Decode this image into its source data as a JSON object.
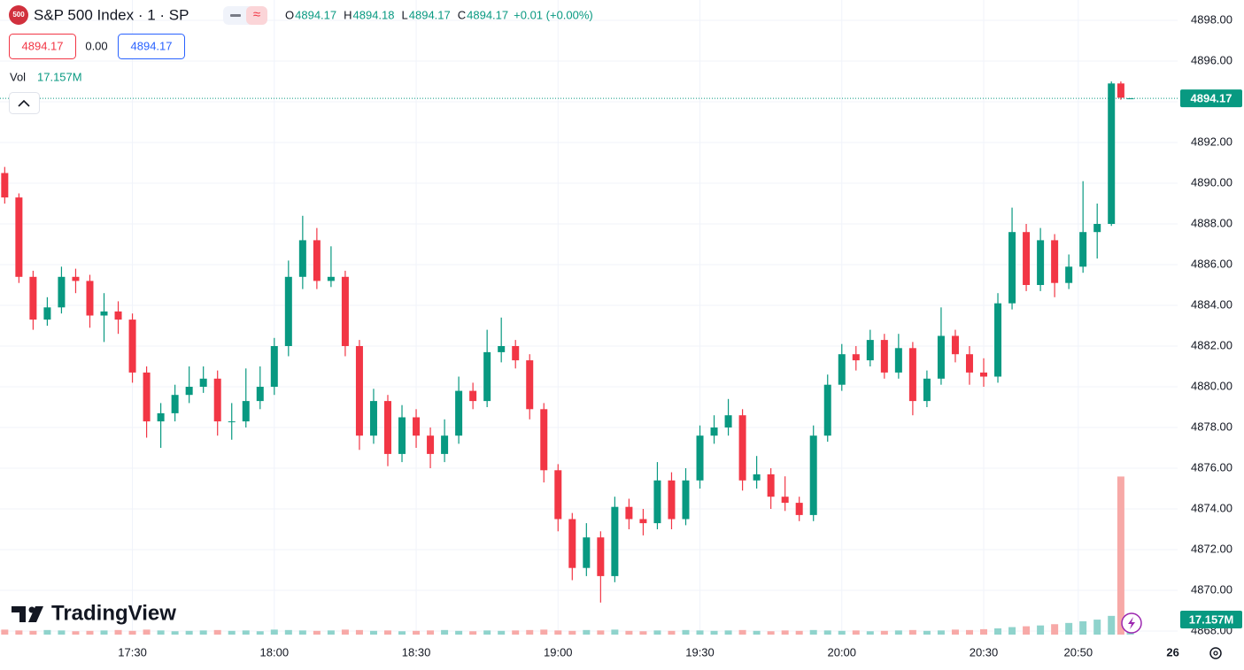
{
  "header": {
    "badge": "500",
    "title": "S&P 500 Index · 1 · SP",
    "o_label": "O",
    "h_label": "H",
    "l_label": "L",
    "c_label": "C",
    "change": "+0.01 (+0.00%)",
    "sell": "4894.17",
    "spread": "0.00",
    "buy": "4894.17",
    "vol_label": "Vol",
    "logo": "TradingView"
  },
  "chart_data": {
    "type": "candlestick",
    "x": [
      1023,
      1026,
      1029,
      1032,
      1035,
      1038,
      1041,
      1044,
      1047,
      1050,
      1053,
      1056,
      1059,
      1062,
      1065,
      1068,
      1071,
      1074,
      1077,
      1080,
      1083,
      1086,
      1089,
      1092,
      1095,
      1098,
      1101,
      1104,
      1107,
      1110,
      1113,
      1116,
      1119,
      1122,
      1125,
      1128,
      1131,
      1134,
      1137,
      1140,
      1143,
      1146,
      1149,
      1152,
      1155,
      1158,
      1161,
      1164,
      1167,
      1170,
      1173,
      1176,
      1179,
      1182,
      1185,
      1188,
      1191,
      1194,
      1197,
      1200,
      1203,
      1206,
      1209,
      1212,
      1215,
      1218,
      1221,
      1224,
      1227,
      1230,
      1233,
      1236,
      1239,
      1242,
      1245,
      1248,
      1251,
      1254,
      1257,
      1259,
      1261
    ],
    "candles": [
      [
        4890.5,
        4890.8,
        4889.0,
        4889.3
      ],
      [
        4889.3,
        4889.5,
        4885.1,
        4885.4
      ],
      [
        4885.4,
        4885.7,
        4882.8,
        4883.3
      ],
      [
        4883.3,
        4884.4,
        4883.0,
        4883.9
      ],
      [
        4883.9,
        4885.9,
        4883.6,
        4885.4
      ],
      [
        4885.4,
        4885.8,
        4884.6,
        4885.2
      ],
      [
        4885.2,
        4885.5,
        4882.9,
        4883.5
      ],
      [
        4883.5,
        4884.6,
        4882.2,
        4883.7
      ],
      [
        4883.7,
        4884.2,
        4882.6,
        4883.3
      ],
      [
        4883.3,
        4883.6,
        4880.2,
        4880.7
      ],
      [
        4880.7,
        4881.0,
        4877.5,
        4878.3
      ],
      [
        4878.3,
        4879.2,
        4877.0,
        4878.7
      ],
      [
        4878.7,
        4880.1,
        4878.3,
        4879.6
      ],
      [
        4879.6,
        4881.0,
        4879.2,
        4880.0
      ],
      [
        4880.0,
        4881.0,
        4879.7,
        4880.4
      ],
      [
        4880.4,
        4880.8,
        4877.6,
        4878.3
      ],
      [
        4878.3,
        4879.2,
        4877.4,
        4878.3
      ],
      [
        4878.3,
        4880.9,
        4878.0,
        4879.3
      ],
      [
        4879.3,
        4881.0,
        4878.9,
        4880.0
      ],
      [
        4880.0,
        4882.4,
        4879.6,
        4882.0
      ],
      [
        4882.0,
        4886.2,
        4881.5,
        4885.4
      ],
      [
        4885.4,
        4888.4,
        4884.8,
        4887.2
      ],
      [
        4887.2,
        4887.8,
        4884.8,
        4885.2
      ],
      [
        4885.2,
        4886.9,
        4884.9,
        4885.4
      ],
      [
        4885.4,
        4885.7,
        4881.5,
        4882.0
      ],
      [
        4882.0,
        4882.3,
        4876.9,
        4877.6
      ],
      [
        4877.6,
        4879.9,
        4877.2,
        4879.3
      ],
      [
        4879.3,
        4879.6,
        4876.1,
        4876.7
      ],
      [
        4876.7,
        4879.1,
        4876.3,
        4878.5
      ],
      [
        4878.5,
        4878.9,
        4877.0,
        4877.6
      ],
      [
        4877.6,
        4878.0,
        4876.0,
        4876.7
      ],
      [
        4876.7,
        4878.4,
        4876.3,
        4877.6
      ],
      [
        4877.6,
        4880.5,
        4877.2,
        4879.8
      ],
      [
        4879.8,
        4880.2,
        4878.9,
        4879.3
      ],
      [
        4879.3,
        4882.8,
        4879.0,
        4881.7
      ],
      [
        4881.7,
        4883.4,
        4881.2,
        4882.0
      ],
      [
        4882.0,
        4882.3,
        4880.9,
        4881.3
      ],
      [
        4881.3,
        4881.6,
        4878.4,
        4878.9
      ],
      [
        4878.9,
        4879.2,
        4875.3,
        4875.9
      ],
      [
        4875.9,
        4876.2,
        4872.9,
        4873.5
      ],
      [
        4873.5,
        4873.8,
        4870.5,
        4871.1
      ],
      [
        4871.1,
        4873.3,
        4870.7,
        4872.6
      ],
      [
        4872.6,
        4872.9,
        4869.4,
        4870.7
      ],
      [
        4870.7,
        4874.6,
        4870.4,
        4874.1
      ],
      [
        4874.1,
        4874.5,
        4873.0,
        4873.5
      ],
      [
        4873.5,
        4874.0,
        4872.7,
        4873.3
      ],
      [
        4873.3,
        4876.3,
        4873.0,
        4875.4
      ],
      [
        4875.4,
        4875.8,
        4873.0,
        4873.5
      ],
      [
        4873.5,
        4876.0,
        4873.2,
        4875.4
      ],
      [
        4875.4,
        4878.1,
        4875.0,
        4877.6
      ],
      [
        4877.6,
        4878.6,
        4877.2,
        4878.0
      ],
      [
        4878.0,
        4879.4,
        4877.6,
        4878.6
      ],
      [
        4878.6,
        4878.9,
        4874.9,
        4875.4
      ],
      [
        4875.4,
        4876.6,
        4875.0,
        4875.7
      ],
      [
        4875.7,
        4876.0,
        4874.0,
        4874.6
      ],
      [
        4874.6,
        4875.6,
        4873.9,
        4874.3
      ],
      [
        4874.3,
        4874.6,
        4873.4,
        4873.7
      ],
      [
        4873.7,
        4878.1,
        4873.4,
        4877.6
      ],
      [
        4877.6,
        4880.6,
        4877.3,
        4880.1
      ],
      [
        4880.1,
        4882.1,
        4879.8,
        4881.6
      ],
      [
        4881.6,
        4882.0,
        4880.8,
        4881.3
      ],
      [
        4881.3,
        4882.8,
        4881.0,
        4882.3
      ],
      [
        4882.3,
        4882.6,
        4880.4,
        4880.7
      ],
      [
        4880.7,
        4882.6,
        4880.4,
        4881.9
      ],
      [
        4881.9,
        4882.2,
        4878.6,
        4879.3
      ],
      [
        4879.3,
        4880.8,
        4879.0,
        4880.4
      ],
      [
        4880.4,
        4883.9,
        4880.1,
        4882.5
      ],
      [
        4882.5,
        4882.8,
        4881.2,
        4881.6
      ],
      [
        4881.6,
        4882.0,
        4880.1,
        4880.7
      ],
      [
        4880.7,
        4881.4,
        4880.0,
        4880.5
      ],
      [
        4880.5,
        4884.6,
        4880.2,
        4884.1
      ],
      [
        4884.1,
        4888.8,
        4883.8,
        4887.6
      ],
      [
        4887.6,
        4888.0,
        4884.7,
        4885.0
      ],
      [
        4885.0,
        4887.8,
        4884.7,
        4887.2
      ],
      [
        4887.2,
        4887.5,
        4884.4,
        4885.1
      ],
      [
        4885.1,
        4886.5,
        4884.8,
        4885.9
      ],
      [
        4885.9,
        4890.1,
        4885.6,
        4887.6
      ],
      [
        4887.6,
        4889.0,
        4886.3,
        4888.0
      ],
      [
        4888.0,
        4895.0,
        4887.9,
        4894.9
      ],
      [
        4894.9,
        4895.0,
        4894.1,
        4894.2
      ],
      [
        4894.17,
        4894.18,
        4894.17,
        4894.17
      ]
    ],
    "volume": [
      12,
      10,
      9,
      11,
      10,
      8,
      9,
      10,
      11,
      9,
      12,
      10,
      8,
      9,
      10,
      11,
      9,
      10,
      8,
      12,
      11,
      10,
      9,
      10,
      12,
      11,
      9,
      10,
      8,
      9,
      10,
      11,
      9,
      8,
      10,
      9,
      10,
      11,
      12,
      10,
      9,
      11,
      10,
      12,
      9,
      8,
      10,
      9,
      11,
      10,
      9,
      10,
      11,
      9,
      8,
      10,
      9,
      11,
      10,
      9,
      10,
      8,
      9,
      10,
      11,
      9,
      10,
      12,
      11,
      13,
      15,
      18,
      20,
      22,
      25,
      28,
      32,
      36,
      45,
      380,
      17.157
    ],
    "volume_last_label": "17.157M",
    "up_color": "#089981",
    "down_color": "#f23645",
    "volume_up_color": "#8fd3cc",
    "volume_down_color": "#f7a9a7",
    "xlim": [
      1022,
      1271
    ],
    "ylim": [
      4868,
      4899
    ],
    "volume_ylim": [
      0,
      400
    ],
    "yticks": [
      {
        "value": 4868,
        "label": "4868.00"
      },
      {
        "value": 4870,
        "label": "4870.00"
      },
      {
        "value": 4872,
        "label": "4872.00"
      },
      {
        "value": 4874,
        "label": "4874.00"
      },
      {
        "value": 4876,
        "label": "4876.00"
      },
      {
        "value": 4878,
        "label": "4878.00"
      },
      {
        "value": 4880,
        "label": "4880.00"
      },
      {
        "value": 4882,
        "label": "4882.00"
      },
      {
        "value": 4884,
        "label": "4884.00"
      },
      {
        "value": 4886,
        "label": "4886.00"
      },
      {
        "value": 4888,
        "label": "4888.00"
      },
      {
        "value": 4890,
        "label": "4890.00"
      },
      {
        "value": 4892,
        "label": "4892.00"
      },
      {
        "value": 4894,
        "label": "4894.00"
      },
      {
        "value": 4896,
        "label": "4896.00"
      },
      {
        "value": 4898,
        "label": "4898.00"
      }
    ],
    "xticks": [
      {
        "value": 1050,
        "label": "17:30"
      },
      {
        "value": 1080,
        "label": "18:00"
      },
      {
        "value": 1110,
        "label": "18:30"
      },
      {
        "value": 1140,
        "label": "19:00"
      },
      {
        "value": 1170,
        "label": "19:30"
      },
      {
        "value": 1200,
        "label": "20:00"
      },
      {
        "value": 1230,
        "label": "20:30"
      },
      {
        "value": 1250,
        "label": "20:50"
      },
      {
        "value": 1270,
        "label": "26"
      }
    ],
    "grid": true
  }
}
